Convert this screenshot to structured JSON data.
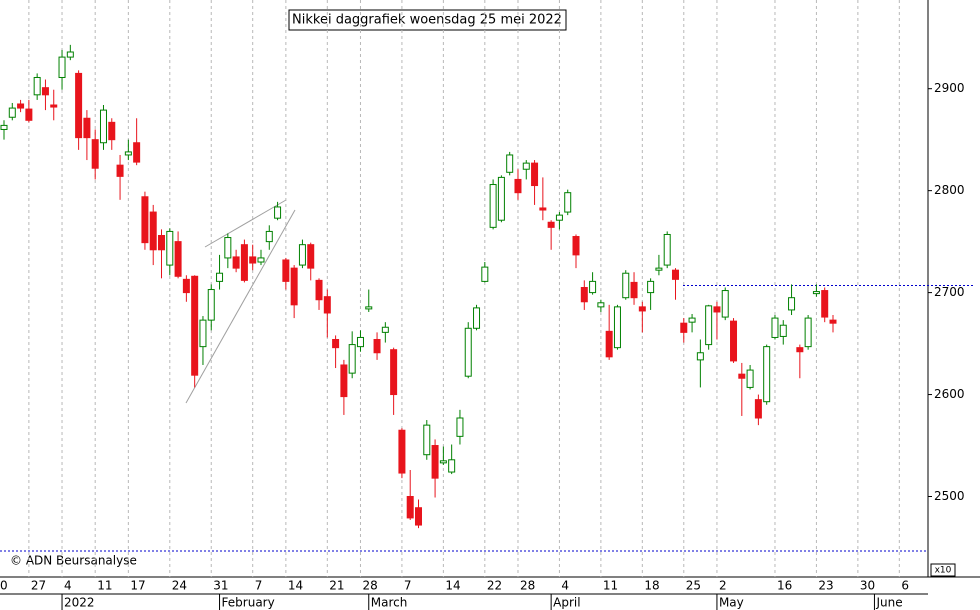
{
  "chart_data": {
    "type": "candlestick",
    "title": "Nikkei daggrafiek woensdag 25 mei 2022",
    "source": "© ADN Beursanalyse",
    "scale_note": "x10",
    "up_color": "#008000",
    "down_color": "#e8141c",
    "ylim": [
      2423,
      2987
    ],
    "yticks": [
      2500,
      2600,
      2700,
      2800,
      2900
    ],
    "resistance_line": {
      "value": 2707,
      "color": "#0000cc"
    },
    "categories": [
      "0",
      null,
      null,
      null,
      null,
      "27",
      null,
      null,
      null,
      "4",
      null,
      null,
      null,
      "11",
      null,
      null,
      null,
      "17",
      null,
      null,
      null,
      null,
      "24",
      null,
      null,
      null,
      null,
      "31",
      null,
      null,
      null,
      null,
      "7",
      null,
      null,
      null,
      "14",
      null,
      null,
      null,
      null,
      "21",
      null,
      null,
      null,
      "28",
      null,
      null,
      null,
      null,
      "7",
      null,
      null,
      null,
      null,
      "14",
      null,
      null,
      null,
      null,
      "22",
      null,
      null,
      null,
      "28",
      null,
      null,
      null,
      null,
      "4",
      null,
      null,
      null,
      null,
      "11",
      null,
      null,
      null,
      null,
      "18",
      null,
      null,
      null,
      null,
      "25",
      null,
      null,
      null,
      "2",
      null,
      null,
      null,
      null,
      null,
      null,
      "16",
      null,
      null,
      null,
      null,
      "23",
      null,
      null,
      null,
      null,
      "30",
      null,
      null,
      null,
      null,
      "6",
      null,
      null
    ],
    "months": [
      null,
      null,
      null,
      null,
      null,
      null,
      null,
      null,
      null,
      "2022",
      null,
      null,
      null,
      null,
      null,
      null,
      null,
      null,
      null,
      null,
      null,
      null,
      null,
      null,
      null,
      null,
      null,
      null,
      "February",
      null,
      null,
      null,
      null,
      null,
      null,
      null,
      null,
      null,
      null,
      null,
      null,
      null,
      null,
      null,
      null,
      null,
      "March",
      null,
      null,
      null,
      null,
      null,
      null,
      null,
      null,
      null,
      null,
      null,
      null,
      null,
      null,
      null,
      null,
      null,
      null,
      null,
      null,
      null,
      "April",
      null,
      null,
      null,
      null,
      null,
      null,
      null,
      null,
      null,
      null,
      null,
      null,
      null,
      null,
      null,
      null,
      null,
      null,
      null,
      "May",
      null,
      null,
      null,
      null,
      null,
      null,
      null,
      null,
      null,
      null,
      null,
      null,
      null,
      null,
      null,
      null,
      null,
      null,
      "June",
      null,
      null,
      null,
      null,
      null
    ],
    "open": [
      null,
      null,
      2860,
      2872,
      2885,
      2880,
      2894,
      2901,
      2884,
      2911,
      2931,
      2915,
      2871,
      2850,
      2847,
      2867,
      2825,
      2835,
      2847,
      2794,
      2779,
      2756,
      2727,
      2750,
      2713,
      2716,
      2647,
      2673,
      2711,
      2734,
      2735,
      2747,
      2735,
      2730,
      2750,
      2773,
      2732,
      2724,
      2727,
      2747,
      2712,
      2696,
      2654,
      2629,
      2621,
      2647,
      2684,
      2654,
      2661,
      2644,
      2565,
      2500,
      2489,
      2541,
      2550,
      2533,
      2524,
      2559,
      2618,
      2665,
      2711,
      2764,
      2771,
      2818,
      2811,
      2821,
      2827,
      2783,
      2769,
      2771,
      2779,
      2755,
      2705,
      2700,
      2686,
      2662,
      2646,
      2695,
      2710,
      2686,
      2700,
      2722,
      2727,
      2722,
      2670,
      2671,
      2634,
      2649,
      2686,
      2676,
      2672,
      2620,
      2607,
      2595,
      2593,
      2656,
      2657,
      2683,
      2646,
      2647,
      2699,
      2702,
      2673,
      null,
      null,
      null,
      null,
      null,
      null,
      null,
      null,
      null,
      null
    ],
    "high": [
      null,
      null,
      2869,
      2886,
      2889,
      2889,
      2915,
      2909,
      2899,
      2938,
      2943,
      2918,
      2879,
      2860,
      2884,
      2871,
      2835,
      2850,
      2871,
      2799,
      2786,
      2762,
      2763,
      2760,
      2717,
      2717,
      2677,
      2708,
      2737,
      2758,
      2742,
      2752,
      2747,
      2742,
      2766,
      2789,
      2734,
      2727,
      2752,
      2749,
      2714,
      2703,
      2658,
      2634,
      2662,
      2663,
      2703,
      2661,
      2671,
      2646,
      2567,
      2526,
      2497,
      2575,
      2556,
      2549,
      2551,
      2585,
      2671,
      2688,
      2730,
      2811,
      2815,
      2838,
      2821,
      2830,
      2830,
      2813,
      2771,
      2779,
      2801,
      2757,
      2712,
      2720,
      2693,
      2688,
      2688,
      2722,
      2720,
      2691,
      2714,
      2737,
      2760,
      2724,
      2675,
      2679,
      2654,
      2688,
      2691,
      2705,
      2675,
      2631,
      2629,
      2600,
      2649,
      2678,
      2673,
      2708,
      2649,
      2678,
      2708,
      2705,
      2678,
      null,
      null,
      null,
      null,
      null,
      null,
      null,
      null,
      null,
      null
    ],
    "low": [
      null,
      null,
      2850,
      2869,
      2877,
      2867,
      2889,
      2879,
      2869,
      2899,
      2928,
      2840,
      2830,
      2811,
      2840,
      2840,
      2791,
      2830,
      2825,
      2742,
      2727,
      2714,
      2717,
      2714,
      2691,
      2607,
      2629,
      2663,
      2703,
      2724,
      2720,
      2710,
      2722,
      2727,
      2742,
      2771,
      2703,
      2675,
      2724,
      2712,
      2683,
      2656,
      2626,
      2580,
      2616,
      2642,
      2681,
      2634,
      2651,
      2580,
      2518,
      2477,
      2469,
      2536,
      2499,
      2531,
      2522,
      2551,
      2616,
      2663,
      2710,
      2762,
      2769,
      2815,
      2791,
      2811,
      2786,
      2771,
      2742,
      2762,
      2776,
      2724,
      2683,
      2698,
      2681,
      2634,
      2644,
      2693,
      2688,
      2661,
      2683,
      2717,
      2724,
      2693,
      2651,
      2661,
      2607,
      2644,
      2654,
      2673,
      2631,
      2579,
      2605,
      2570,
      2590,
      2654,
      2649,
      2678,
      2616,
      2644,
      2696,
      2671,
      2661,
      null,
      null,
      null,
      null,
      null,
      null,
      null,
      null,
      null,
      null
    ],
    "close": [
      null,
      null,
      2864,
      2881,
      2881,
      2869,
      2911,
      2894,
      2882,
      2931,
      2936,
      2852,
      2852,
      2822,
      2879,
      2850,
      2814,
      2838,
      2828,
      2749,
      2742,
      2742,
      2760,
      2716,
      2700,
      2619,
      2673,
      2703,
      2719,
      2754,
      2724,
      2712,
      2729,
      2734,
      2760,
      2784,
      2711,
      2688,
      2747,
      2724,
      2693,
      2680,
      2646,
      2598,
      2649,
      2656,
      2686,
      2641,
      2666,
      2600,
      2523,
      2479,
      2472,
      2570,
      2518,
      2535,
      2536,
      2577,
      2665,
      2685,
      2725,
      2806,
      2813,
      2835,
      2798,
      2827,
      2805,
      2781,
      2764,
      2776,
      2798,
      2737,
      2691,
      2711,
      2690,
      2637,
      2686,
      2719,
      2695,
      2682,
      2711,
      2724,
      2757,
      2713,
      2661,
      2675,
      2641,
      2687,
      2681,
      2702,
      2633,
      2616,
      2624,
      2577,
      2647,
      2675,
      2668,
      2695,
      2642,
      2675,
      2701,
      2676,
      2670,
      null,
      null,
      null,
      null,
      null,
      null,
      null,
      null,
      null,
      null
    ]
  }
}
